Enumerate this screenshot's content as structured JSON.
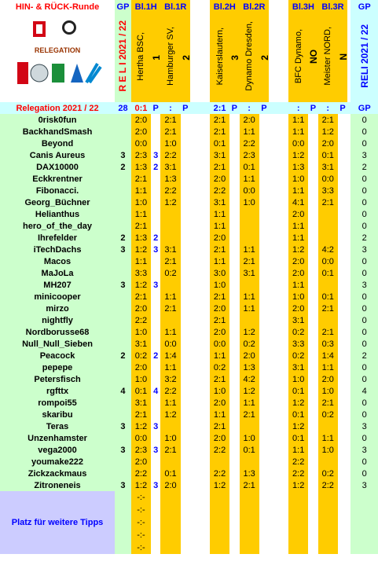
{
  "header": {
    "title": "HIN- & RÜCK-Runde",
    "gp": "GP",
    "cols": [
      "Bl.1H",
      "Bl.1R",
      "",
      "Bl.2H",
      "Bl.2R",
      "",
      "Bl.3H",
      "Bl.3R"
    ],
    "gp_right": "GP"
  },
  "logo": {
    "text": "RELEGATION",
    "sub": "BUNDESLIGA"
  },
  "season_label": "R E L I   2021 / 22",
  "matches": [
    {
      "team": "Hertha BSC,",
      "num": "1"
    },
    {
      "team": "Hamburger SV,",
      "num": "2"
    },
    {
      "team": "Hamburger SV,",
      "num": "2"
    },
    {
      "team": "Hertha BSC,",
      "num": "1"
    },
    {
      "team": "Kaiserslautern,",
      "num": "3"
    },
    {
      "team": "Dynamo Dresden,",
      "num": "2"
    },
    {
      "team": "Dynamo Dresden,",
      "num": "2"
    },
    {
      "team": "Kaiserslautern,",
      "num": "3"
    },
    {
      "team": "BFC Dynamo,",
      "num": "NO"
    },
    {
      "team": "Meister NORD,",
      "num": "N"
    },
    {
      "team": "Meister NORD,",
      "num": "N"
    },
    {
      "team": "BFC Dynamo,",
      "num": "NO"
    }
  ],
  "right_label": "RELI 2021 / 22",
  "summary": {
    "label": "Relegation 2021 / 22",
    "gp": "28",
    "res1": "0:1",
    "p1": "P",
    "res2": ":",
    "p2": "P",
    "res3": "2:1",
    "p3": "P",
    "res4": ":",
    "p4": "P",
    "res5": ":",
    "p5": "P",
    "res6": ":",
    "p6": "P",
    "gp_right": "GP"
  },
  "rows": [
    {
      "name": "0risk0fun",
      "gp": "",
      "s": [
        "2:0",
        "",
        "2:1",
        "",
        "2:1",
        "",
        "2:0",
        "",
        "1:1",
        "",
        "2:1",
        ""
      ],
      "gpr": "0"
    },
    {
      "name": "BackhandSmash",
      "gp": "",
      "s": [
        "2:0",
        "",
        "2:1",
        "",
        "2:1",
        "",
        "1:1",
        "",
        "1:1",
        "",
        "1:2",
        ""
      ],
      "gpr": "0"
    },
    {
      "name": "Beyond",
      "gp": "",
      "s": [
        "0:0",
        "",
        "1:0",
        "",
        "0:1",
        "",
        "2:2",
        "",
        "0:0",
        "",
        "2:0",
        ""
      ],
      "gpr": "0"
    },
    {
      "name": "Canis Aureus",
      "gp": "3",
      "s": [
        "2:3",
        "3",
        "2:2",
        "",
        "3:1",
        "",
        "2:3",
        "",
        "1:2",
        "",
        "0:1",
        ""
      ],
      "gpr": "3"
    },
    {
      "name": "DAX10000",
      "gp": "2",
      "s": [
        "1:3",
        "2",
        "3:1",
        "",
        "2:1",
        "",
        "0:1",
        "",
        "1:3",
        "",
        "3:1",
        ""
      ],
      "gpr": "2"
    },
    {
      "name": "Eckkrentner",
      "gp": "",
      "s": [
        "2:1",
        "",
        "1:3",
        "",
        "2:0",
        "",
        "1:1",
        "",
        "1:0",
        "",
        "0:0",
        ""
      ],
      "gpr": "0"
    },
    {
      "name": "Fibonacci.",
      "gp": "",
      "s": [
        "1:1",
        "",
        "2:2",
        "",
        "2:2",
        "",
        "0:0",
        "",
        "1:1",
        "",
        "3:3",
        ""
      ],
      "gpr": "0"
    },
    {
      "name": "Georg_Büchner",
      "gp": "",
      "s": [
        "1:0",
        "",
        "1:2",
        "",
        "3:1",
        "",
        "1:0",
        "",
        "4:1",
        "",
        "2:1",
        ""
      ],
      "gpr": "0"
    },
    {
      "name": "Helianthus",
      "gp": "",
      "s": [
        "1:1",
        "",
        "",
        "",
        "1:1",
        "",
        "",
        "",
        "2:0",
        "",
        "",
        ""
      ],
      "gpr": "0"
    },
    {
      "name": "hero_of_the_day",
      "gp": "",
      "s": [
        "2:1",
        "",
        "",
        "",
        "1:1",
        "",
        "",
        "",
        "1:1",
        "",
        "",
        ""
      ],
      "gpr": "0"
    },
    {
      "name": "Ihrefelder",
      "gp": "2",
      "s": [
        "1:3",
        "2",
        "",
        "",
        "2:0",
        "",
        "",
        "",
        "1:1",
        "",
        "",
        ""
      ],
      "gpr": "2"
    },
    {
      "name": "iTechDachs",
      "gp": "3",
      "s": [
        "1:2",
        "3",
        "3:1",
        "",
        "2:1",
        "",
        "1:1",
        "",
        "1:2",
        "",
        "4:2",
        ""
      ],
      "gpr": "3"
    },
    {
      "name": "Macos",
      "gp": "",
      "s": [
        "1:1",
        "",
        "2:1",
        "",
        "1:1",
        "",
        "2:1",
        "",
        "2:0",
        "",
        "0:0",
        ""
      ],
      "gpr": "0"
    },
    {
      "name": "MaJoLa",
      "gp": "",
      "s": [
        "3:3",
        "",
        "0:2",
        "",
        "3:0",
        "",
        "3:1",
        "",
        "2:0",
        "",
        "0:1",
        ""
      ],
      "gpr": "0"
    },
    {
      "name": "MH207",
      "gp": "3",
      "s": [
        "1:2",
        "3",
        "",
        "",
        "1:0",
        "",
        "",
        "",
        "1:1",
        "",
        "",
        ""
      ],
      "gpr": "3"
    },
    {
      "name": "minicooper",
      "gp": "",
      "s": [
        "2:1",
        "",
        "1:1",
        "",
        "2:1",
        "",
        "1:1",
        "",
        "1:0",
        "",
        "0:1",
        ""
      ],
      "gpr": "0"
    },
    {
      "name": "mirzo",
      "gp": "",
      "s": [
        "2:0",
        "",
        "2:1",
        "",
        "2:0",
        "",
        "1:1",
        "",
        "2:0",
        "",
        "2:1",
        ""
      ],
      "gpr": "0"
    },
    {
      "name": "nightfly",
      "gp": "",
      "s": [
        "2:2",
        "",
        "",
        "",
        "2:1",
        "",
        "",
        "",
        "3:1",
        "",
        "",
        ""
      ],
      "gpr": "0"
    },
    {
      "name": "Nordborusse68",
      "gp": "",
      "s": [
        "1:0",
        "",
        "1:1",
        "",
        "2:0",
        "",
        "1:2",
        "",
        "0:2",
        "",
        "2:1",
        ""
      ],
      "gpr": "0"
    },
    {
      "name": "Null_Null_Sieben",
      "gp": "",
      "s": [
        "3:1",
        "",
        "0:0",
        "",
        "0:0",
        "",
        "0:2",
        "",
        "3:3",
        "",
        "0:3",
        ""
      ],
      "gpr": "0"
    },
    {
      "name": "Peacock",
      "gp": "2",
      "s": [
        "0:2",
        "2",
        "1:4",
        "",
        "1:1",
        "",
        "2:0",
        "",
        "0:2",
        "",
        "1:4",
        ""
      ],
      "gpr": "2"
    },
    {
      "name": "pepepe",
      "gp": "",
      "s": [
        "2:0",
        "",
        "1:1",
        "",
        "0:2",
        "",
        "1:3",
        "",
        "3:1",
        "",
        "1:1",
        ""
      ],
      "gpr": "0"
    },
    {
      "name": "Petersfisch",
      "gp": "",
      "s": [
        "1:0",
        "",
        "3:2",
        "",
        "2:1",
        "",
        "4:2",
        "",
        "1:0",
        "",
        "2:0",
        ""
      ],
      "gpr": "0"
    },
    {
      "name": "rgfttx",
      "gp": "4",
      "s": [
        "0:1",
        "4",
        "2:2",
        "",
        "1:0",
        "",
        "1:2",
        "",
        "0:1",
        "",
        "1:0",
        ""
      ],
      "gpr": "4"
    },
    {
      "name": "rompoi55",
      "gp": "",
      "s": [
        "3:1",
        "",
        "1:1",
        "",
        "2:0",
        "",
        "1:1",
        "",
        "1:2",
        "",
        "2:1",
        ""
      ],
      "gpr": "0"
    },
    {
      "name": "skaribu",
      "gp": "",
      "s": [
        "2:1",
        "",
        "1:2",
        "",
        "1:1",
        "",
        "2:1",
        "",
        "0:1",
        "",
        "0:2",
        ""
      ],
      "gpr": "0"
    },
    {
      "name": "Teras",
      "gp": "3",
      "s": [
        "1:2",
        "3",
        "",
        "",
        "2:1",
        "",
        "",
        "",
        "1:2",
        "",
        "",
        ""
      ],
      "gpr": "3"
    },
    {
      "name": "Unzenhamster",
      "gp": "",
      "s": [
        "0:0",
        "",
        "1:0",
        "",
        "2:0",
        "",
        "1:0",
        "",
        "0:1",
        "",
        "1:1",
        ""
      ],
      "gpr": "0"
    },
    {
      "name": "vega2000",
      "gp": "3",
      "s": [
        "2:3",
        "3",
        "2:1",
        "",
        "2:2",
        "",
        "0:1",
        "",
        "1:1",
        "",
        "1:0",
        ""
      ],
      "gpr": "3"
    },
    {
      "name": "youmake222",
      "gp": "",
      "s": [
        "2:0",
        "",
        "",
        "",
        "",
        "",
        "",
        "",
        "2:2",
        "",
        "",
        ""
      ],
      "gpr": "0"
    },
    {
      "name": "Zickzackmaus",
      "gp": "",
      "s": [
        "2:2",
        "",
        "0:1",
        "",
        "2:2",
        "",
        "1:3",
        "",
        "2:2",
        "",
        "0:2",
        ""
      ],
      "gpr": "0"
    },
    {
      "name": "Zitroneneis",
      "gp": "3",
      "s": [
        "1:2",
        "3",
        "2:0",
        "",
        "1:2",
        "",
        "2:1",
        "",
        "1:2",
        "",
        "2:2",
        ""
      ],
      "gpr": "3"
    }
  ],
  "empty_cell": "-:-",
  "filler_text": "Platz für weitere Tipps",
  "colors": {
    "green": "#ccffcc",
    "yellow": "#ffcc00",
    "cyan": "#ccffff",
    "lavender": "#ccccff",
    "red": "#ff0000",
    "blue": "#0000ff"
  }
}
